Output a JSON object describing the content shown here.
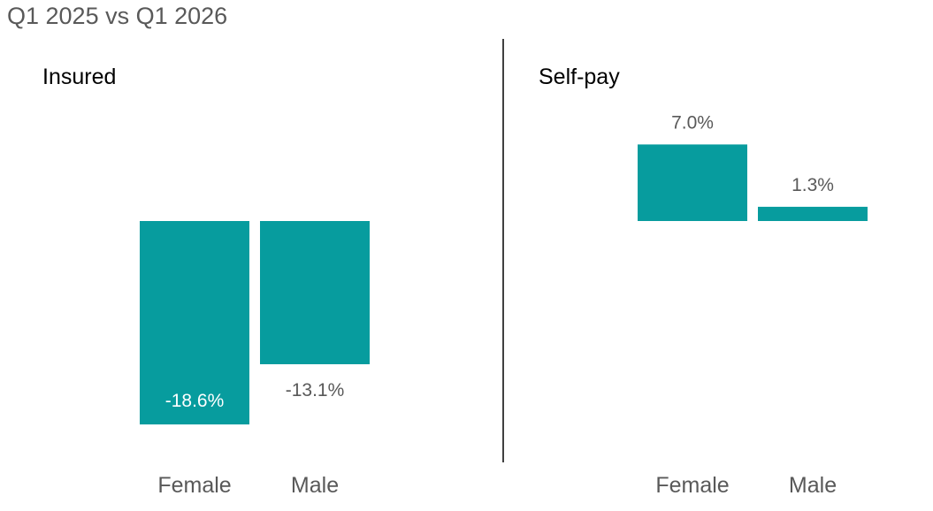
{
  "colors": {
    "bar": "#079c9e",
    "label_outside": "#595959",
    "label_inside": "#ffffff",
    "divider": "#000000"
  },
  "chart_data": {
    "type": "bar",
    "title": "Q1 2025 vs Q1 2026",
    "panels": [
      {
        "name": "Insured",
        "categories": [
          "Female",
          "Male"
        ],
        "values": [
          -18.6,
          -13.1
        ],
        "labels": [
          "-18.6%",
          "-13.1%"
        ]
      },
      {
        "name": "Self-pay",
        "categories": [
          "Female",
          "Male"
        ],
        "values": [
          7.0,
          1.3
        ],
        "labels": [
          "7.0%",
          "1.3%"
        ]
      }
    ],
    "unit": "%",
    "grid": false,
    "legend": "none"
  }
}
